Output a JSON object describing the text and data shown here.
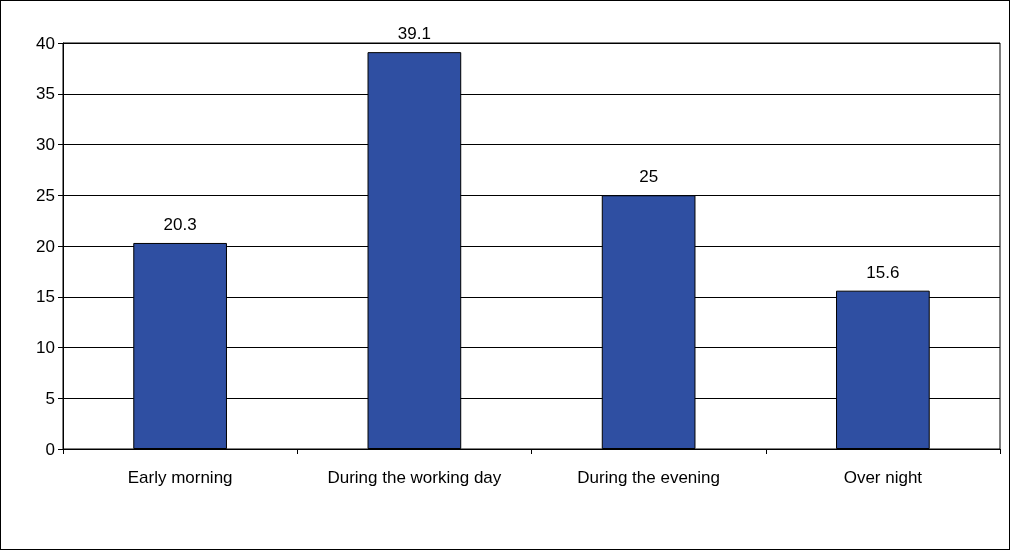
{
  "chart_data": {
    "type": "bar",
    "categories": [
      "Early morning",
      "During the working day",
      "During the evening",
      "Over night"
    ],
    "values": [
      20.3,
      39.1,
      25,
      15.6
    ],
    "color": "#2f4fa2",
    "ylim": [
      0,
      40
    ],
    "yticks": [
      0,
      5,
      10,
      15,
      20,
      25,
      30,
      35,
      40
    ],
    "grid": "y",
    "data_labels": true
  }
}
